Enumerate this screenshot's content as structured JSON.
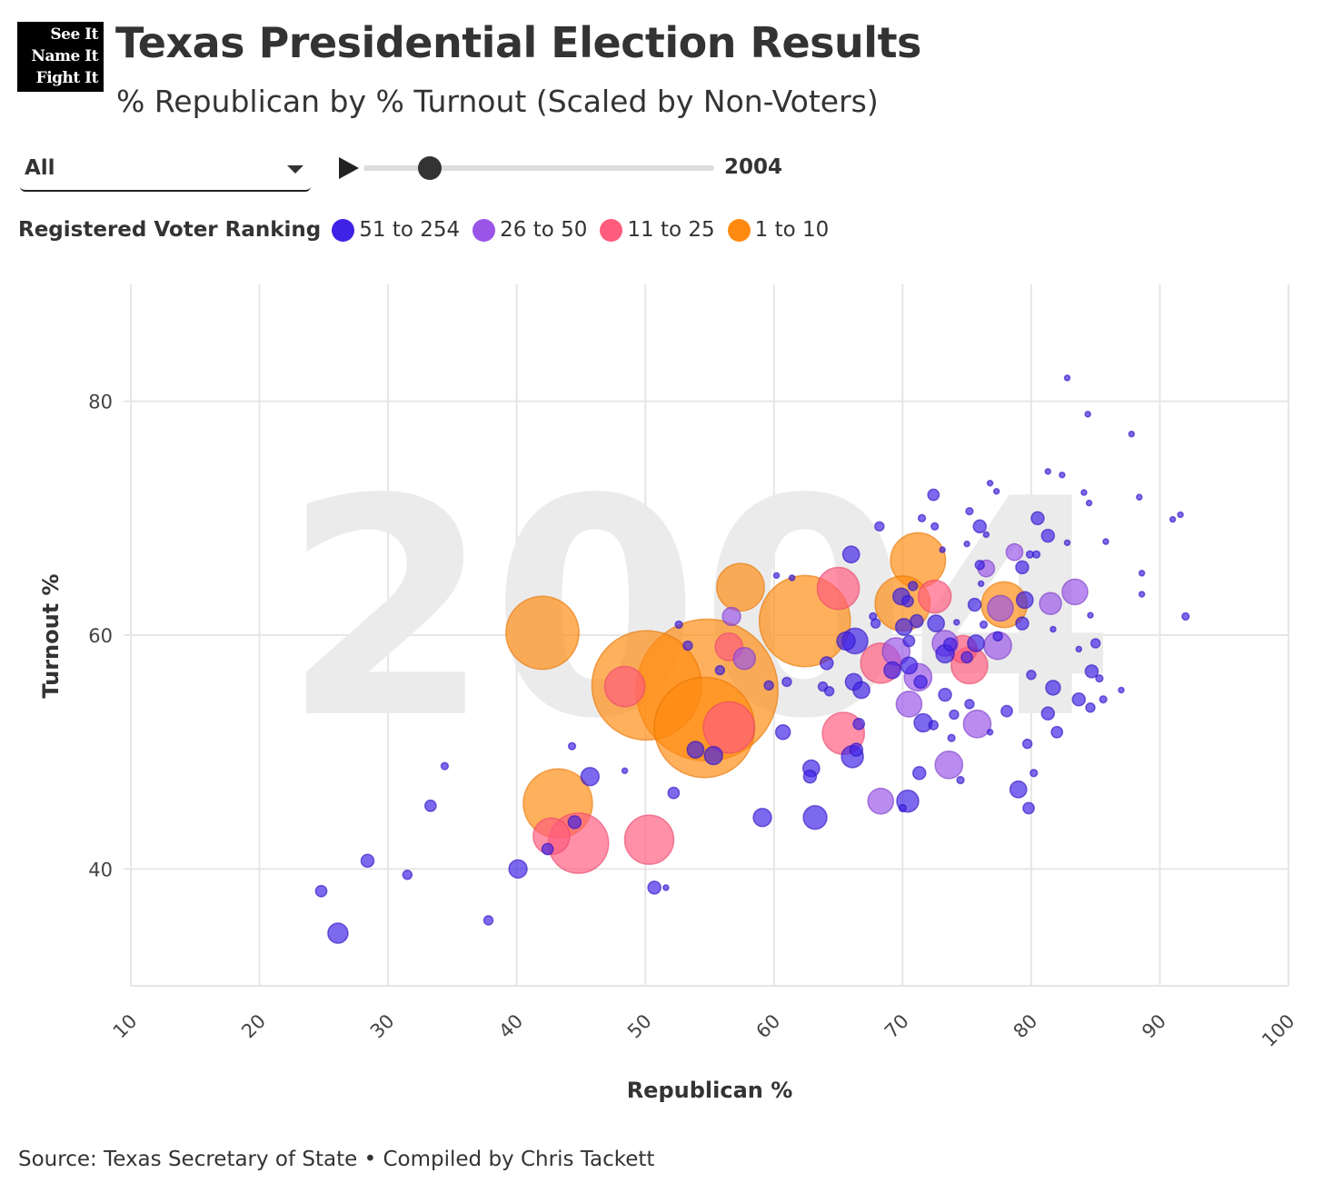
{
  "logo": {
    "lines": [
      "See It",
      "Name It",
      "Fight It"
    ]
  },
  "header": {
    "title": "Texas Presidential Election Results",
    "subtitle": "% Republican by % Turnout (Scaled by Non-Voters)"
  },
  "controls": {
    "dropdown_value": "All",
    "year": "2004",
    "slider_fraction": 0.19
  },
  "legend": {
    "title": "Registered Voter Ranking",
    "items": [
      {
        "label": "51 to 254",
        "color": "#3f22e6"
      },
      {
        "label": "26 to 50",
        "color": "#9a55e8"
      },
      {
        "label": "11 to 25",
        "color": "#ff5c7e"
      },
      {
        "label": "1 to 10",
        "color": "#ff8a10"
      }
    ]
  },
  "source": "Source: Texas Secretary of State • Compiled by Chris Tackett",
  "chart_data": {
    "type": "scatter",
    "title": "Texas Presidential Election Results",
    "subtitle": "% Republican by % Turnout (Scaled by Non-Voters)",
    "watermark": "2004",
    "xlabel": "Republican %",
    "ylabel": "Turnout %",
    "xlim": [
      10,
      100
    ],
    "ylim": [
      30,
      90
    ],
    "xticks": [
      10,
      20,
      30,
      40,
      50,
      60,
      70,
      80,
      90,
      100
    ],
    "yticks": [
      40,
      60,
      80
    ],
    "grid": true,
    "legend_position": "top-left",
    "size_note": "bubble area proportional to non-voters (relative, thousands)",
    "fields": [
      "republican_pct",
      "turnout_pct",
      "nonvoters_rel",
      "group_index"
    ],
    "points": [
      [
        42.0,
        60.2,
        212,
        3
      ],
      [
        50.1,
        55.7,
        476,
        3
      ],
      [
        54.8,
        55.3,
        800,
        3
      ],
      [
        54.6,
        52.1,
        400,
        3
      ],
      [
        43.2,
        45.6,
        190,
        3
      ],
      [
        62.4,
        61.2,
        330,
        3
      ],
      [
        57.4,
        64.1,
        90,
        3
      ],
      [
        71.2,
        66.4,
        120,
        3
      ],
      [
        70.0,
        62.7,
        120,
        3
      ],
      [
        77.9,
        62.6,
        83,
        3
      ],
      [
        44.8,
        42.2,
        144,
        2
      ],
      [
        50.3,
        42.5,
        96,
        2
      ],
      [
        42.7,
        42.8,
        53,
        2
      ],
      [
        48.4,
        55.6,
        64,
        2
      ],
      [
        56.5,
        52.1,
        104,
        2
      ],
      [
        56.5,
        59.0,
        30,
        2
      ],
      [
        65.0,
        64.0,
        70,
        2
      ],
      [
        65.4,
        51.6,
        70,
        2
      ],
      [
        68.3,
        57.6,
        64,
        2
      ],
      [
        72.5,
        63.3,
        43,
        2
      ],
      [
        75.2,
        57.4,
        53,
        2
      ],
      [
        74.7,
        58.8,
        30,
        2
      ],
      [
        73.6,
        48.9,
        30,
        1
      ],
      [
        68.3,
        45.8,
        26,
        1
      ],
      [
        75.8,
        52.4,
        30,
        1
      ],
      [
        83.4,
        63.7,
        26,
        1
      ],
      [
        81.5,
        62.7,
        19,
        1
      ],
      [
        78.7,
        67.1,
        11,
        1
      ],
      [
        76.5,
        65.7,
        11,
        1
      ],
      [
        77.6,
        62.3,
        26,
        1
      ],
      [
        77.4,
        59.1,
        30,
        1
      ],
      [
        70.5,
        54.1,
        26,
        1
      ],
      [
        71.2,
        56.4,
        30,
        1
      ],
      [
        69.5,
        58.6,
        30,
        1
      ],
      [
        73.3,
        59.3,
        26,
        1
      ],
      [
        56.7,
        61.6,
        13,
        1
      ],
      [
        57.7,
        58.0,
        19,
        1
      ],
      [
        26.1,
        34.5,
        16,
        0
      ],
      [
        24.8,
        38.1,
        5,
        0
      ],
      [
        28.4,
        40.7,
        6.5,
        0
      ],
      [
        31.5,
        39.5,
        3.3,
        0
      ],
      [
        33.3,
        45.4,
        5,
        0
      ],
      [
        34.4,
        48.8,
        2,
        0
      ],
      [
        37.8,
        35.6,
        3.3,
        0
      ],
      [
        40.1,
        40.0,
        13,
        0
      ],
      [
        42.4,
        41.7,
        5,
        0
      ],
      [
        44.5,
        44.0,
        6.5,
        0
      ],
      [
        44.3,
        50.5,
        2,
        0
      ],
      [
        45.7,
        47.9,
        13,
        0
      ],
      [
        48.4,
        48.4,
        1.2,
        0
      ],
      [
        50.7,
        38.4,
        6.5,
        0
      ],
      [
        51.6,
        38.4,
        1.2,
        0
      ],
      [
        52.2,
        46.5,
        5,
        0
      ],
      [
        53.9,
        50.2,
        11,
        0
      ],
      [
        55.3,
        49.7,
        13,
        0
      ],
      [
        53.3,
        59.1,
        3.3,
        0
      ],
      [
        52.6,
        60.9,
        2,
        0
      ],
      [
        60.7,
        51.7,
        8.5,
        0
      ],
      [
        59.1,
        44.4,
        13,
        0
      ],
      [
        63.2,
        44.4,
        22,
        0
      ],
      [
        62.9,
        48.6,
        11,
        0
      ],
      [
        62.8,
        47.9,
        6.5,
        0
      ],
      [
        66.1,
        49.6,
        19,
        0
      ],
      [
        66.4,
        50.2,
        6.5,
        0
      ],
      [
        66.6,
        52.4,
        5,
        0
      ],
      [
        70.4,
        45.8,
        19,
        0
      ],
      [
        70.0,
        45.2,
        2,
        0
      ],
      [
        71.3,
        48.2,
        6.5,
        0
      ],
      [
        66.0,
        66.9,
        11,
        0
      ],
      [
        68.2,
        69.3,
        3.3,
        0
      ],
      [
        72.4,
        72.0,
        5,
        0
      ],
      [
        71.5,
        70.0,
        2,
        0
      ],
      [
        76.0,
        69.3,
        6.5,
        0
      ],
      [
        75.2,
        70.6,
        2,
        0
      ],
      [
        76.8,
        73.0,
        1.2,
        0
      ],
      [
        77.3,
        72.3,
        1.2,
        0
      ],
      [
        82.8,
        82.0,
        1.2,
        0
      ],
      [
        84.4,
        78.9,
        1.2,
        0
      ],
      [
        87.8,
        77.2,
        1.2,
        0
      ],
      [
        81.3,
        74.0,
        1.2,
        0
      ],
      [
        82.4,
        73.7,
        1.2,
        0
      ],
      [
        84.1,
        72.2,
        1.2,
        0
      ],
      [
        84.5,
        71.3,
        1.2,
        0
      ],
      [
        88.4,
        71.8,
        1.2,
        0
      ],
      [
        91.0,
        69.9,
        1.2,
        0
      ],
      [
        91.6,
        70.3,
        1.2,
        0
      ],
      [
        80.5,
        70.0,
        6.5,
        0
      ],
      [
        81.3,
        68.5,
        6.5,
        0
      ],
      [
        85.8,
        68.0,
        1.2,
        0
      ],
      [
        82.8,
        67.9,
        1.2,
        0
      ],
      [
        88.6,
        65.3,
        1.2,
        0
      ],
      [
        88.6,
        63.5,
        1.2,
        0
      ],
      [
        92.0,
        61.6,
        2,
        0
      ],
      [
        84.6,
        61.7,
        1.2,
        0
      ],
      [
        81.7,
        60.5,
        1.2,
        0
      ],
      [
        85.0,
        59.3,
        3.3,
        0
      ],
      [
        83.7,
        58.8,
        1.2,
        0
      ],
      [
        84.7,
        56.9,
        6.5,
        0
      ],
      [
        85.3,
        56.3,
        2,
        0
      ],
      [
        87.0,
        55.3,
        1.2,
        0
      ],
      [
        85.6,
        54.5,
        2,
        0
      ],
      [
        83.7,
        54.5,
        6.5,
        0
      ],
      [
        84.6,
        53.8,
        3.3,
        0
      ],
      [
        81.7,
        55.5,
        8.5,
        0
      ],
      [
        82.0,
        51.7,
        5,
        0
      ],
      [
        79.0,
        46.8,
        11,
        0
      ],
      [
        79.8,
        45.2,
        5,
        0
      ],
      [
        79.7,
        50.7,
        3.3,
        0
      ],
      [
        80.2,
        48.2,
        2,
        0
      ],
      [
        78.1,
        53.5,
        5,
        0
      ],
      [
        76.8,
        51.7,
        1.2,
        0
      ],
      [
        81.3,
        53.3,
        6.5,
        0
      ],
      [
        80.0,
        56.6,
        3.3,
        0
      ],
      [
        79.3,
        61.0,
        6.5,
        0
      ],
      [
        79.5,
        63.0,
        11,
        0
      ],
      [
        79.3,
        65.8,
        6.5,
        0
      ],
      [
        79.9,
        66.9,
        2,
        0
      ],
      [
        80.4,
        66.9,
        2,
        0
      ],
      [
        76.1,
        64.4,
        1.2,
        0
      ],
      [
        75.0,
        67.8,
        1.2,
        0
      ],
      [
        76.5,
        68.6,
        1.2,
        0
      ],
      [
        76.0,
        66.0,
        3.3,
        0
      ],
      [
        75.6,
        62.6,
        6.5,
        0
      ],
      [
        77.4,
        59.9,
        3.3,
        0
      ],
      [
        76.3,
        60.9,
        2,
        0
      ],
      [
        74.2,
        61.1,
        1.2,
        0
      ],
      [
        75.0,
        58.1,
        5,
        0
      ],
      [
        73.7,
        59.2,
        6.5,
        0
      ],
      [
        70.5,
        59.5,
        5,
        0
      ],
      [
        72.6,
        61.0,
        11,
        0
      ],
      [
        71.1,
        61.2,
        6.5,
        0
      ],
      [
        70.1,
        60.7,
        11,
        0
      ],
      [
        69.9,
        63.3,
        11,
        0
      ],
      [
        70.8,
        64.2,
        3.3,
        0
      ],
      [
        70.4,
        62.9,
        5,
        0
      ],
      [
        67.9,
        61.0,
        3.3,
        0
      ],
      [
        67.7,
        61.6,
        2,
        0
      ],
      [
        66.3,
        59.5,
        26,
        0
      ],
      [
        65.6,
        59.5,
        13,
        0
      ],
      [
        64.1,
        57.6,
        6.5,
        0
      ],
      [
        63.8,
        55.6,
        3.3,
        0
      ],
      [
        64.3,
        55.2,
        3.3,
        0
      ],
      [
        66.2,
        56.0,
        11,
        0
      ],
      [
        66.8,
        55.3,
        11,
        0
      ],
      [
        69.2,
        57.0,
        11,
        0
      ],
      [
        70.5,
        57.4,
        11,
        0
      ],
      [
        71.4,
        56.0,
        6.5,
        0
      ],
      [
        73.3,
        54.9,
        6.5,
        0
      ],
      [
        71.6,
        52.5,
        13,
        0
      ],
      [
        72.4,
        52.3,
        3.3,
        0
      ],
      [
        74.0,
        53.2,
        3.3,
        0
      ],
      [
        75.2,
        54.1,
        3.3,
        0
      ],
      [
        73.8,
        51.2,
        2,
        0
      ],
      [
        74.5,
        47.6,
        2,
        0
      ],
      [
        72.5,
        69.3,
        2,
        0
      ],
      [
        73.1,
        67.3,
        1.2,
        0
      ],
      [
        61.0,
        56.0,
        3.3,
        0
      ],
      [
        59.6,
        55.7,
        3.3,
        0
      ],
      [
        55.8,
        57.0,
        3.3,
        0
      ],
      [
        60.2,
        65.1,
        1.2,
        0
      ],
      [
        61.4,
        64.9,
        1.2,
        0
      ],
      [
        75.7,
        59.3,
        11,
        0
      ],
      [
        73.3,
        58.4,
        13,
        0
      ]
    ]
  }
}
